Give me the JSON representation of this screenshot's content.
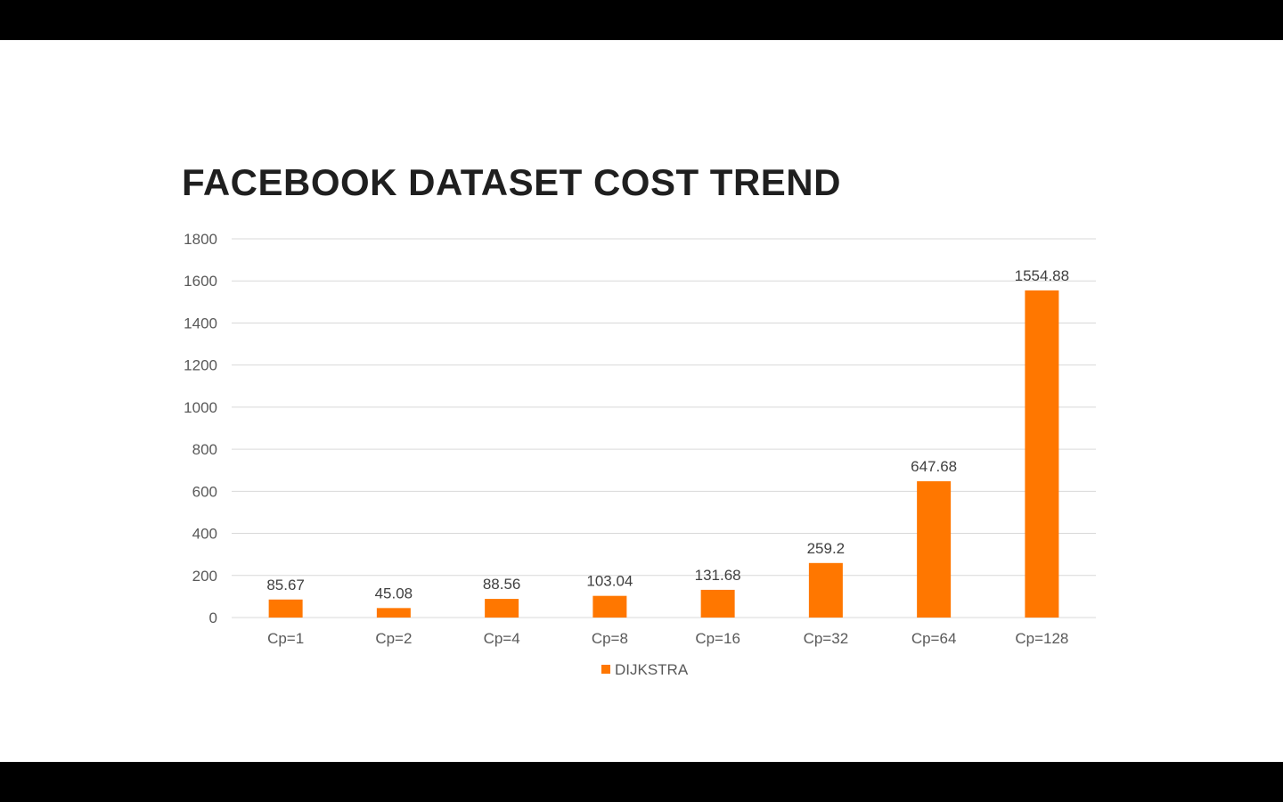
{
  "slide": {
    "title": "FACEBOOK DATASET COST TREND"
  },
  "colors": {
    "bar": "#FF7700",
    "grid": "#D9D9D9",
    "background": "#FFFFFF",
    "letterbox": "#000000"
  },
  "chart_data": {
    "type": "bar",
    "title": "FACEBOOK DATASET COST TREND",
    "xlabel": "",
    "ylabel": "",
    "categories": [
      "Cp=1",
      "Cp=2",
      "Cp=4",
      "Cp=8",
      "Cp=16",
      "Cp=32",
      "Cp=64",
      "Cp=128"
    ],
    "series": [
      {
        "name": "DIJKSTRA",
        "values": [
          85.67,
          45.08,
          88.56,
          103.04,
          131.68,
          259.2,
          647.68,
          1554.88
        ],
        "data_labels": [
          "85.67",
          "45.08",
          "88.56",
          "103.04",
          "131.68",
          "259.2",
          "647.68",
          "1554.88"
        ]
      }
    ],
    "ylim": [
      0,
      1800
    ],
    "yticks": [
      0,
      200,
      400,
      600,
      800,
      1000,
      1200,
      1400,
      1600,
      1800
    ],
    "ytick_labels": [
      "0",
      "200",
      "400",
      "600",
      "800",
      "1000",
      "1200",
      "1400",
      "1600",
      "1800"
    ],
    "grid": true,
    "legend": {
      "position": "bottom",
      "entries": [
        "DIJKSTRA"
      ]
    }
  }
}
